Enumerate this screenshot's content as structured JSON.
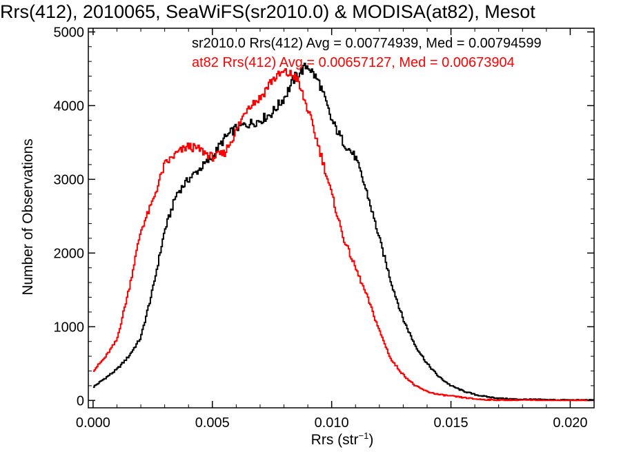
{
  "chart_data": {
    "type": "line",
    "title": "Rrs(412), 2010065, SeaWiFS(sr2010.0) & MODISA(at82), Mesot",
    "xlabel_main": "Rrs (str",
    "xlabel_sup": "−1",
    "xlabel_close": ")",
    "ylabel": "Number of Observations",
    "xlim": [
      -0.0002,
      0.021
    ],
    "ylim": [
      -100,
      5050
    ],
    "xticks": [
      0.0,
      0.005,
      0.01,
      0.015,
      0.02
    ],
    "xtick_labels": [
      "0.000",
      "0.005",
      "0.010",
      "0.015",
      "0.020"
    ],
    "yticks": [
      0,
      1000,
      2000,
      3000,
      4000,
      5000
    ],
    "ytick_labels": [
      "0",
      "1000",
      "2000",
      "3000",
      "4000",
      "5000"
    ],
    "legend": [
      {
        "text": "sr2010.0 Rrs(412) Avg = 0.00774939, Med = 0.00794599",
        "color": "#000000"
      },
      {
        "text": "at82 Rrs(412) Avg = 0.00657127, Med = 0.00673904",
        "color": "#ff0000"
      }
    ],
    "series": [
      {
        "name": "sr2010.0",
        "color": "#000000",
        "x": [
          0.0,
          0.0005,
          0.001,
          0.0015,
          0.002,
          0.0025,
          0.003,
          0.0035,
          0.004,
          0.0045,
          0.005,
          0.0055,
          0.006,
          0.0065,
          0.007,
          0.0075,
          0.008,
          0.0085,
          0.009,
          0.0095,
          0.01,
          0.0105,
          0.011,
          0.0115,
          0.012,
          0.0125,
          0.013,
          0.0135,
          0.014,
          0.0145,
          0.015,
          0.0155,
          0.016,
          0.0165,
          0.017,
          0.0175,
          0.018,
          0.019,
          0.02,
          0.021
        ],
        "y": [
          180,
          300,
          420,
          600,
          850,
          1500,
          2300,
          2800,
          3000,
          3150,
          3300,
          3550,
          3700,
          3750,
          3800,
          3900,
          4100,
          4400,
          4550,
          4300,
          3800,
          3500,
          3300,
          2800,
          2200,
          1600,
          1100,
          750,
          500,
          320,
          200,
          130,
          80,
          50,
          30,
          20,
          15,
          10,
          5,
          5
        ]
      },
      {
        "name": "at82",
        "color": "#ff0000",
        "x": [
          0.0,
          0.0005,
          0.001,
          0.0015,
          0.002,
          0.0025,
          0.003,
          0.0035,
          0.004,
          0.0045,
          0.005,
          0.0055,
          0.006,
          0.0065,
          0.007,
          0.0075,
          0.008,
          0.0085,
          0.009,
          0.0095,
          0.01,
          0.0105,
          0.011,
          0.0115,
          0.012,
          0.0125,
          0.013,
          0.0135,
          0.014,
          0.0145,
          0.015,
          0.0155,
          0.016,
          0.0165,
          0.017,
          0.018,
          0.019,
          0.02,
          0.021
        ],
        "y": [
          400,
          580,
          820,
          1500,
          2300,
          2700,
          3200,
          3350,
          3450,
          3400,
          3300,
          3350,
          3650,
          4000,
          4100,
          4350,
          4450,
          4400,
          3950,
          3400,
          2800,
          2200,
          1800,
          1400,
          950,
          550,
          350,
          200,
          120,
          80,
          60,
          40,
          20,
          10,
          5,
          5,
          0,
          0,
          0
        ]
      }
    ]
  }
}
